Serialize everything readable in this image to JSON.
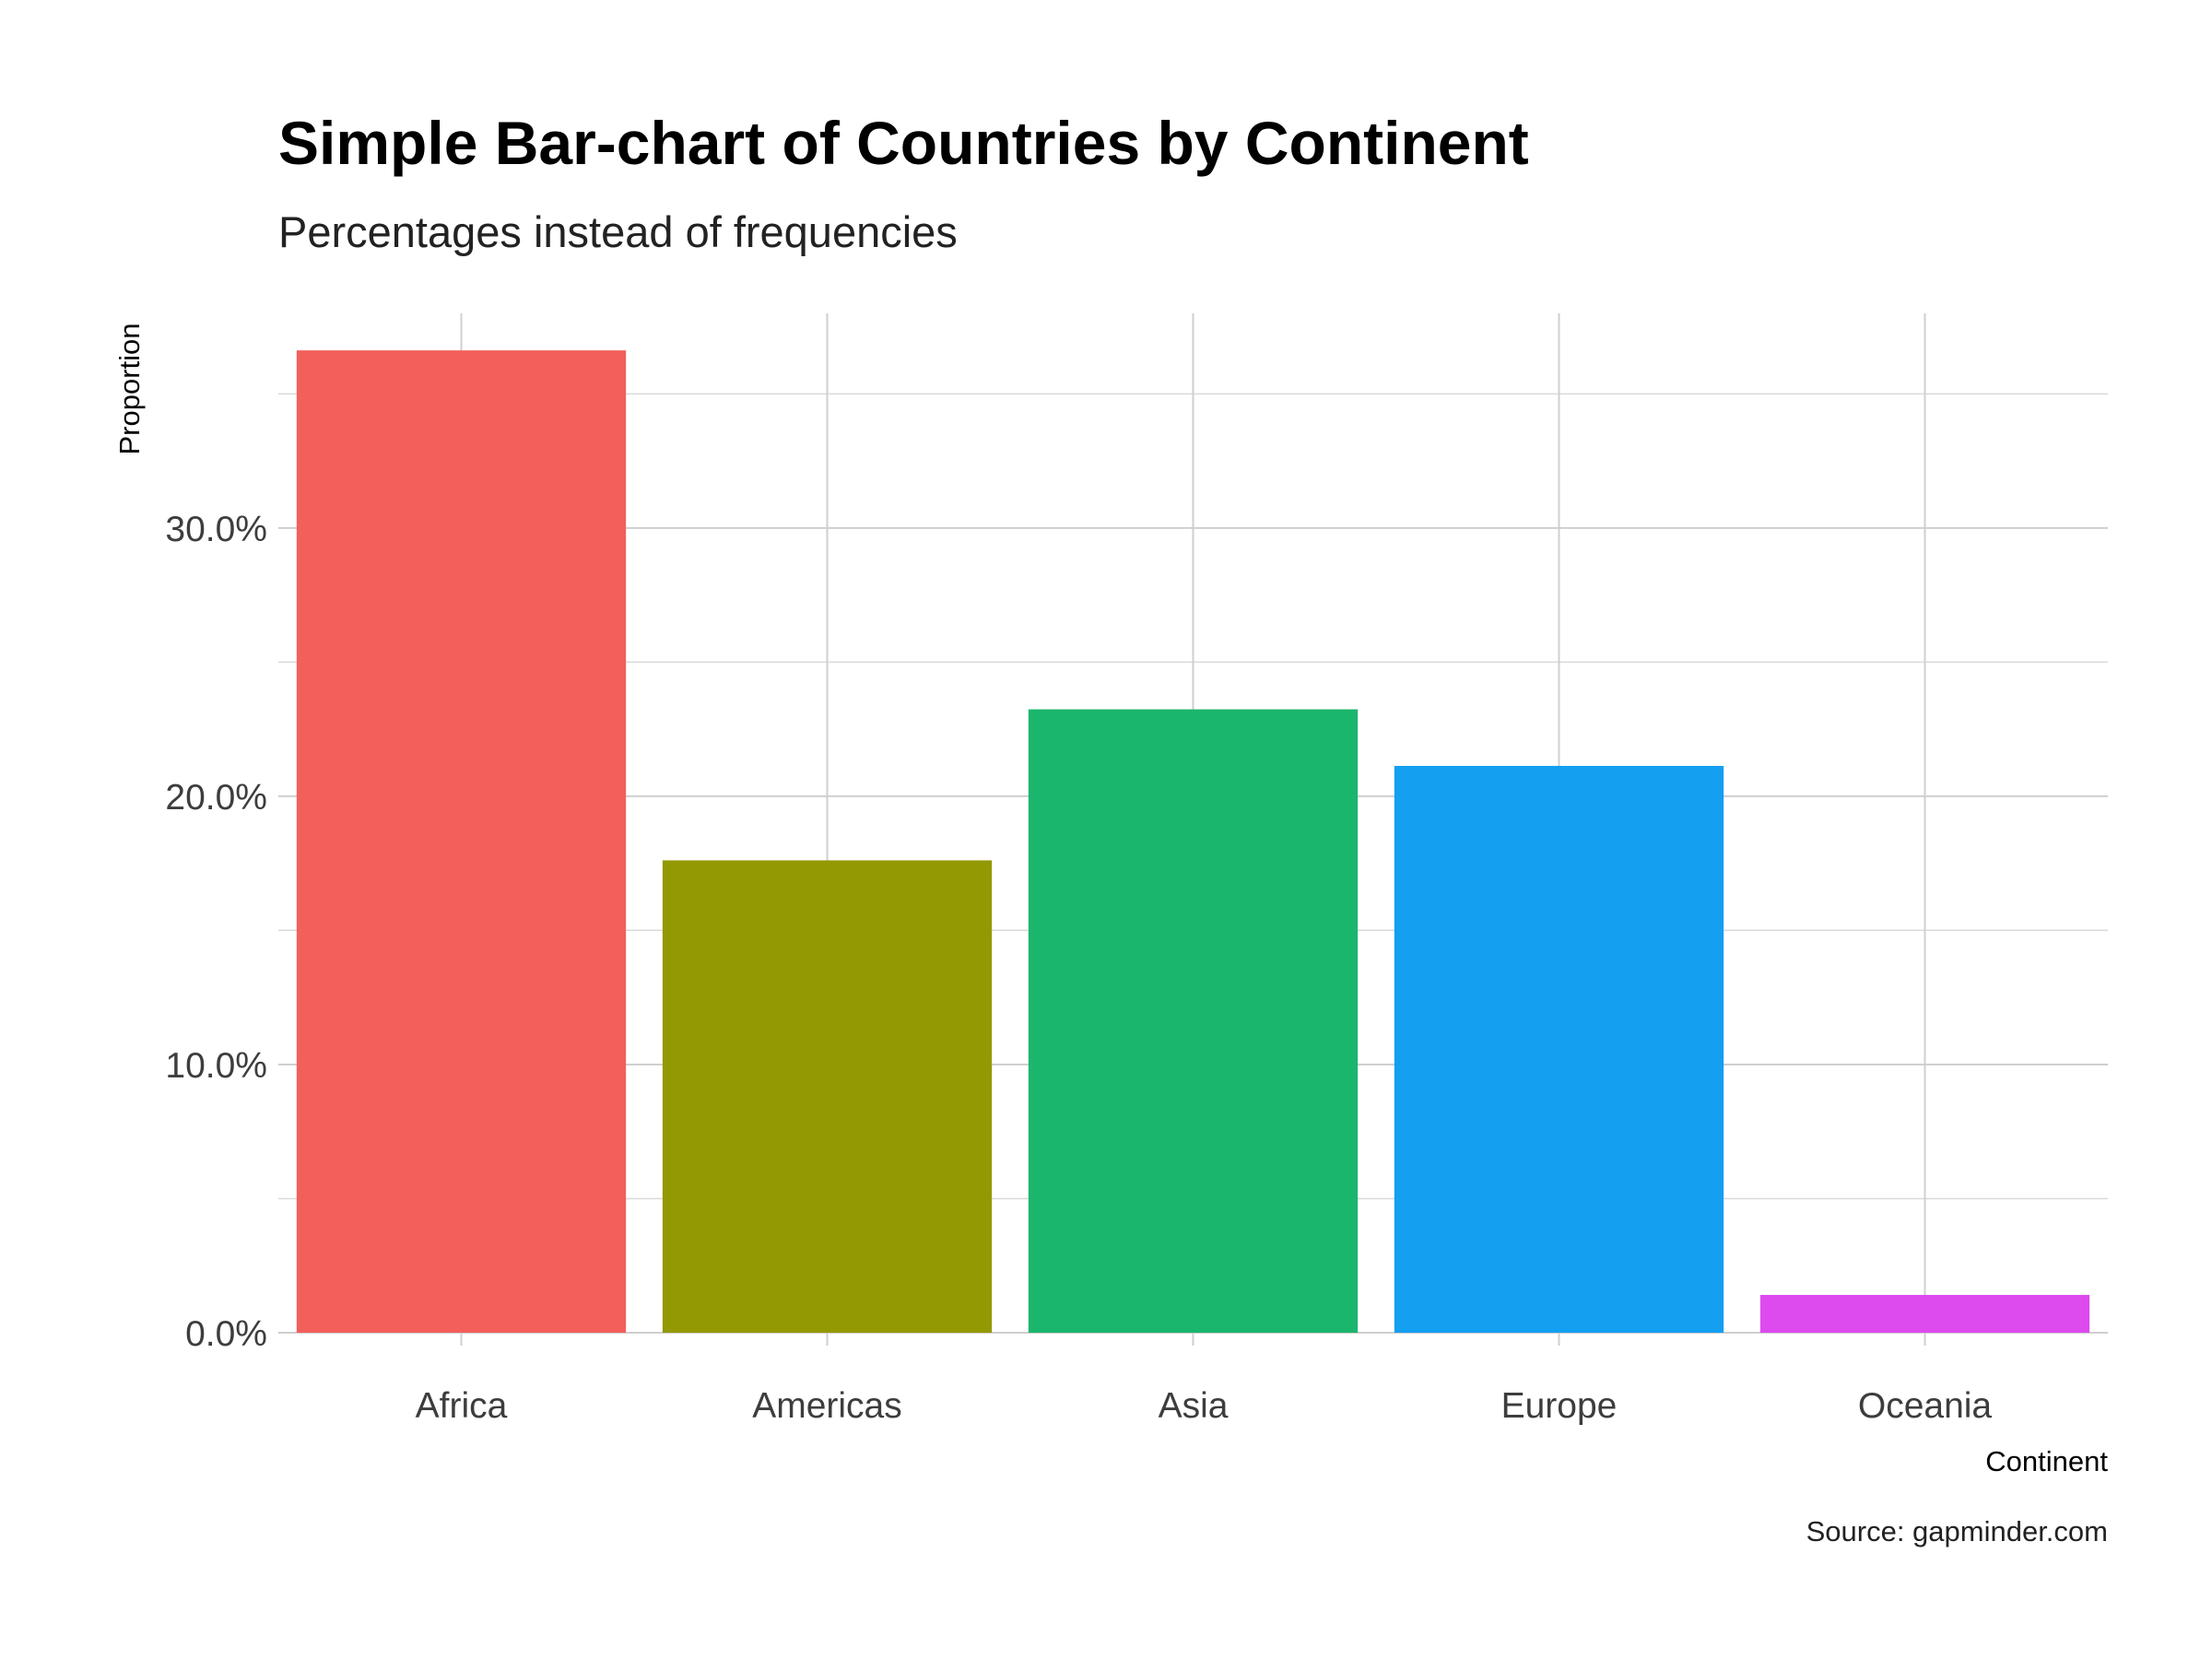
{
  "chart_data": {
    "type": "bar",
    "title": "Simple Bar-chart of Countries by Continent",
    "subtitle": "Percentages instead of frequencies",
    "xlabel": "Continent",
    "ylabel": "Proportion",
    "caption": "Source: gapminder.com",
    "categories": [
      "Africa",
      "Americas",
      "Asia",
      "Europe",
      "Oceania"
    ],
    "values": [
      0.3662,
      0.1761,
      0.2324,
      0.2113,
      0.0141
    ],
    "colors": [
      "#F35F5B",
      "#929903",
      "#1BB66D",
      "#149FF1",
      "#DD4AEE"
    ],
    "ylim": [
      0,
      0.38
    ],
    "y_ticks": [
      0.0,
      0.1,
      0.2,
      0.3
    ],
    "y_tick_labels": [
      "0.0%",
      "10.0%",
      "20.0%",
      "30.0%"
    ],
    "y_minor_ticks": [
      0.05,
      0.15,
      0.25,
      0.35
    ],
    "grid": true,
    "legend": "none"
  }
}
